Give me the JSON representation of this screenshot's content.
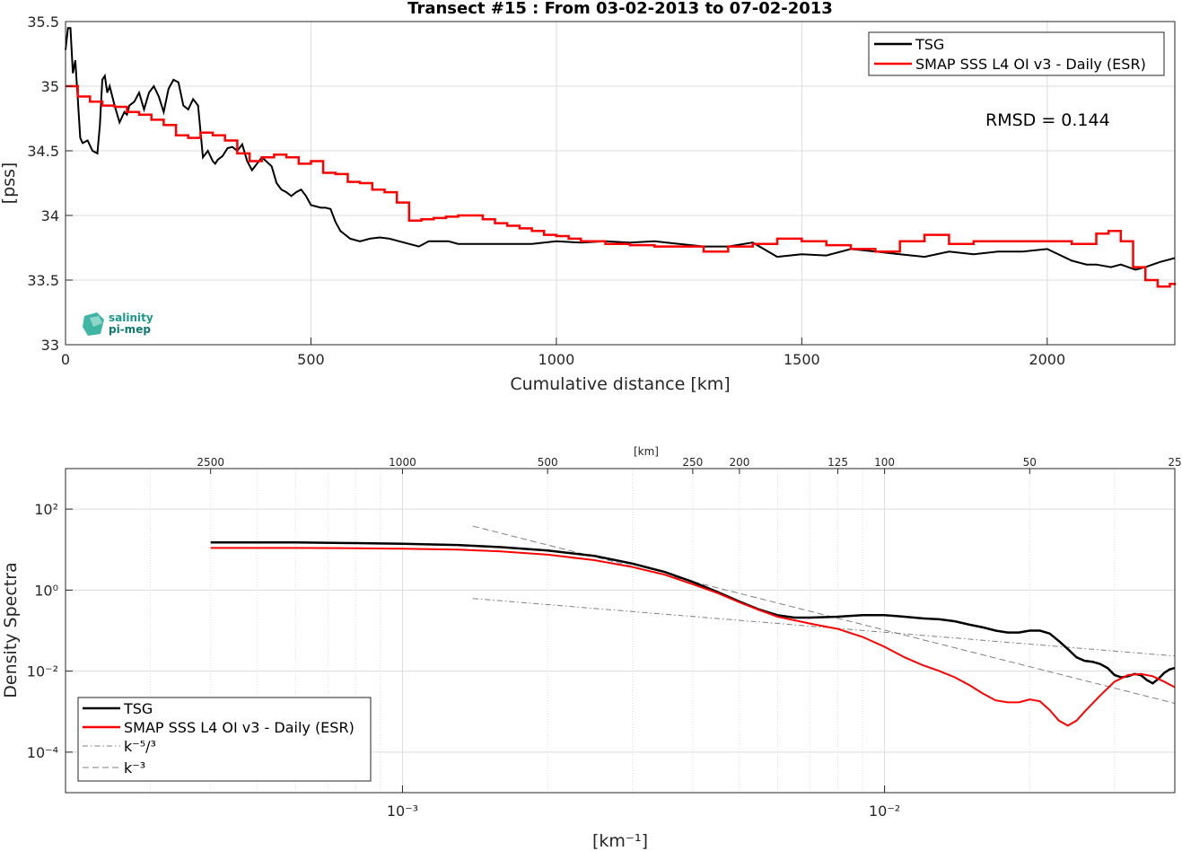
{
  "colors": {
    "tsg": "#000000",
    "smap": "#ff0000",
    "grid": "#dcdcdc",
    "ref": "#7f7f7f",
    "logo": "#1a9a8a"
  },
  "chart_data": [
    {
      "type": "line",
      "title": "Transect #15 : From 03-02-2013 to 07-02-2013",
      "xlabel": "Cumulative distance [km]",
      "ylabel": "[pss]",
      "xlim": [
        0,
        2260
      ],
      "ylim": [
        33,
        35.5
      ],
      "xticks": [
        0,
        500,
        1000,
        1500,
        2000
      ],
      "yticks": [
        33,
        33.5,
        34,
        34.5,
        35,
        35.5
      ],
      "grid": true,
      "legend_position": "top-right",
      "annotation": "RMSD = 0.144",
      "series": [
        {
          "name": "TSG",
          "x": [
            0,
            5,
            10,
            15,
            20,
            25,
            30,
            35,
            45,
            55,
            65,
            70,
            75,
            80,
            85,
            90,
            100,
            110,
            120,
            125,
            130,
            140,
            150,
            160,
            170,
            180,
            190,
            200,
            210,
            220,
            230,
            240,
            250,
            260,
            270,
            280,
            290,
            300,
            305,
            310,
            320,
            330,
            340,
            350,
            360,
            370,
            380,
            400,
            420,
            430,
            440,
            450,
            460,
            470,
            480,
            490,
            500,
            510,
            520,
            530,
            540,
            550,
            560,
            580,
            600,
            620,
            640,
            660,
            680,
            700,
            720,
            740,
            760,
            780,
            800,
            850,
            900,
            950,
            1000,
            1050,
            1100,
            1150,
            1200,
            1250,
            1300,
            1350,
            1400,
            1450,
            1500,
            1550,
            1600,
            1650,
            1700,
            1750,
            1800,
            1850,
            1900,
            1950,
            2000,
            2050,
            2080,
            2100,
            2130,
            2150,
            2180,
            2200,
            2230,
            2260
          ],
          "values": [
            35.28,
            35.45,
            35.45,
            35.1,
            35.2,
            34.9,
            34.6,
            34.56,
            34.58,
            34.5,
            34.48,
            34.7,
            35.05,
            35.08,
            34.95,
            35.0,
            34.85,
            34.72,
            34.8,
            34.78,
            34.85,
            34.88,
            34.95,
            34.82,
            34.95,
            35.0,
            34.92,
            34.8,
            34.98,
            35.05,
            35.03,
            34.85,
            34.82,
            34.9,
            34.85,
            34.45,
            34.5,
            34.42,
            34.4,
            34.43,
            34.46,
            34.52,
            34.53,
            34.5,
            34.55,
            34.42,
            34.35,
            34.45,
            34.38,
            34.25,
            34.2,
            34.18,
            34.15,
            34.18,
            34.2,
            34.15,
            34.08,
            34.07,
            34.06,
            34.06,
            34.05,
            33.95,
            33.88,
            33.82,
            33.8,
            33.82,
            33.83,
            33.82,
            33.8,
            33.78,
            33.76,
            33.8,
            33.8,
            33.8,
            33.78,
            33.78,
            33.78,
            33.78,
            33.8,
            33.79,
            33.8,
            33.79,
            33.8,
            33.78,
            33.76,
            33.76,
            33.79,
            33.68,
            33.7,
            33.69,
            33.74,
            33.72,
            33.7,
            33.68,
            33.72,
            33.7,
            33.72,
            33.72,
            33.74,
            33.65,
            33.62,
            33.62,
            33.6,
            33.62,
            33.58,
            33.6,
            33.64,
            33.67
          ]
        },
        {
          "name": "SMAP SSS L4 OI v3 - Daily (ESR)",
          "x": [
            0,
            25,
            50,
            75,
            100,
            125,
            150,
            175,
            200,
            225,
            250,
            275,
            300,
            325,
            350,
            375,
            400,
            425,
            450,
            475,
            500,
            525,
            550,
            575,
            600,
            625,
            650,
            675,
            700,
            725,
            750,
            775,
            800,
            825,
            850,
            875,
            900,
            925,
            950,
            975,
            1000,
            1025,
            1050,
            1075,
            1100,
            1150,
            1200,
            1250,
            1300,
            1350,
            1400,
            1450,
            1500,
            1550,
            1600,
            1650,
            1700,
            1750,
            1800,
            1850,
            1900,
            1950,
            2000,
            2050,
            2100,
            2125,
            2150,
            2175,
            2200,
            2225,
            2250,
            2260
          ],
          "values": [
            35.0,
            34.92,
            34.88,
            34.85,
            34.84,
            34.8,
            34.78,
            34.74,
            34.7,
            34.62,
            34.6,
            34.64,
            34.62,
            34.58,
            34.48,
            34.42,
            34.45,
            34.47,
            34.45,
            34.4,
            34.42,
            34.33,
            34.32,
            34.26,
            34.25,
            34.2,
            34.18,
            34.1,
            33.96,
            33.97,
            33.98,
            33.99,
            34.0,
            34.0,
            33.97,
            33.94,
            33.92,
            33.9,
            33.88,
            33.85,
            33.84,
            33.82,
            33.8,
            33.8,
            33.78,
            33.77,
            33.76,
            33.76,
            33.72,
            33.76,
            33.78,
            33.82,
            33.8,
            33.77,
            33.74,
            33.72,
            33.8,
            33.85,
            33.78,
            33.8,
            33.8,
            33.8,
            33.8,
            33.78,
            33.86,
            33.88,
            33.8,
            33.6,
            33.5,
            33.45,
            33.47,
            33.46
          ]
        }
      ]
    },
    {
      "type": "line",
      "xlabel": "[km⁻¹]",
      "ylabel": "Density Spectra",
      "top_axis_label": "[km]",
      "xscale": "log",
      "yscale": "log",
      "xlim": [
        0.0002,
        0.04
      ],
      "ylim": [
        1e-05,
        1000
      ],
      "xtick_labels": [
        "10⁻³",
        "10⁻²"
      ],
      "ytick_labels": [
        "10²",
        "10⁰",
        "10⁻²",
        "10⁻⁴"
      ],
      "top_ticks": [
        "2500",
        "1000",
        "500",
        "250",
        "200",
        "125",
        "100",
        "50",
        "25"
      ],
      "grid": true,
      "legend_position": "bottom-left",
      "series": [
        {
          "name": "TSG",
          "x": [
            0.0004,
            0.0006,
            0.0008,
            0.001,
            0.0013,
            0.0016,
            0.002,
            0.0025,
            0.003,
            0.0035,
            0.004,
            0.0045,
            0.005,
            0.0055,
            0.006,
            0.0065,
            0.007,
            0.008,
            0.009,
            0.01,
            0.011,
            0.012,
            0.013,
            0.014,
            0.015,
            0.016,
            0.017,
            0.018,
            0.019,
            0.02,
            0.021,
            0.022,
            0.023,
            0.024,
            0.025,
            0.026,
            0.027,
            0.028,
            0.029,
            0.03,
            0.031,
            0.032,
            0.033,
            0.034,
            0.035,
            0.036,
            0.037,
            0.038,
            0.039,
            0.04
          ],
          "values": [
            15,
            15,
            14.5,
            14,
            13,
            11.5,
            9.5,
            7,
            4.5,
            2.8,
            1.6,
            0.9,
            0.52,
            0.33,
            0.24,
            0.21,
            0.21,
            0.22,
            0.24,
            0.24,
            0.22,
            0.2,
            0.19,
            0.17,
            0.14,
            0.12,
            0.1,
            0.09,
            0.09,
            0.1,
            0.1,
            0.085,
            0.055,
            0.035,
            0.022,
            0.018,
            0.017,
            0.015,
            0.012,
            0.008,
            0.007,
            0.0075,
            0.0085,
            0.008,
            0.006,
            0.005,
            0.0065,
            0.009,
            0.011,
            0.012
          ]
        },
        {
          "name": "SMAP SSS L4 OI v3 - Daily (ESR)",
          "x": [
            0.0004,
            0.0006,
            0.0008,
            0.001,
            0.0013,
            0.0016,
            0.002,
            0.0025,
            0.003,
            0.0035,
            0.004,
            0.0045,
            0.005,
            0.0055,
            0.006,
            0.007,
            0.008,
            0.009,
            0.01,
            0.011,
            0.012,
            0.013,
            0.014,
            0.015,
            0.016,
            0.017,
            0.018,
            0.019,
            0.02,
            0.021,
            0.022,
            0.023,
            0.024,
            0.025,
            0.026,
            0.028,
            0.03,
            0.032,
            0.034,
            0.036,
            0.038,
            0.04
          ],
          "values": [
            11,
            11,
            10.8,
            10.5,
            10,
            9,
            7.5,
            5.5,
            3.7,
            2.4,
            1.4,
            0.85,
            0.5,
            0.32,
            0.22,
            0.15,
            0.11,
            0.07,
            0.04,
            0.022,
            0.014,
            0.01,
            0.007,
            0.0045,
            0.0028,
            0.0019,
            0.0017,
            0.0017,
            0.002,
            0.0018,
            0.0011,
            0.0006,
            0.00045,
            0.0006,
            0.001,
            0.0025,
            0.0055,
            0.008,
            0.0085,
            0.0075,
            0.0055,
            0.004
          ]
        },
        {
          "name": "k⁻⁵/³",
          "x": [
            0.0014,
            0.04
          ],
          "values": [
            0.62,
            0.0236
          ]
        },
        {
          "name": "k⁻³",
          "x": [
            0.0014,
            0.04
          ],
          "values": [
            38,
            0.0016
          ]
        }
      ]
    }
  ]
}
